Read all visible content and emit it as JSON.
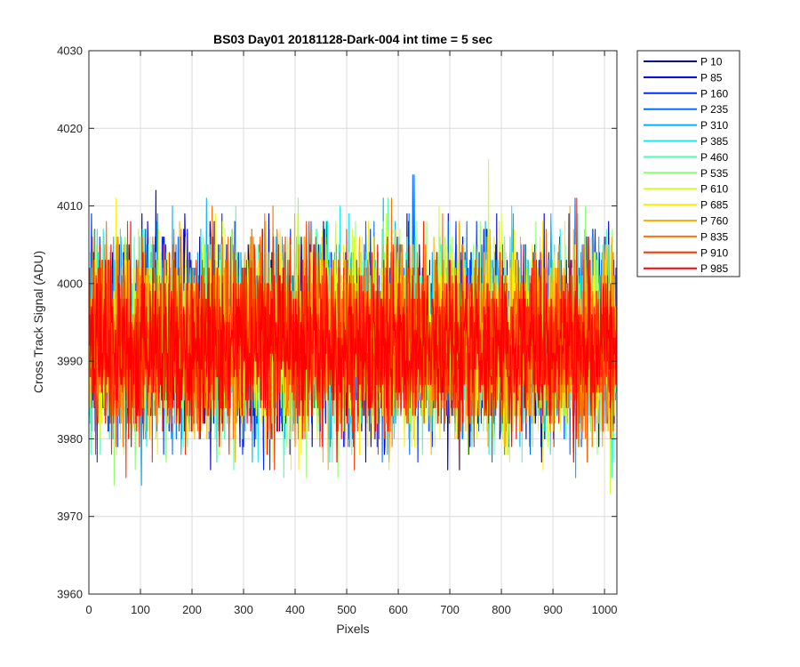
{
  "chart_data": {
    "type": "line",
    "title": "BS03 Day01 20181128-Dark-004 int time = 5 sec",
    "xlabel": "Pixels",
    "ylabel": "Cross Track Signal (ADU)",
    "xlim": [
      0,
      1024
    ],
    "ylim": [
      3960,
      4030
    ],
    "xticks": [
      0,
      100,
      200,
      300,
      400,
      500,
      600,
      700,
      800,
      900,
      1000
    ],
    "yticks": [
      3960,
      3970,
      3980,
      3990,
      4000,
      4010,
      4020,
      4030
    ],
    "xtick_labels": [
      "0",
      "100",
      "200",
      "300",
      "400",
      "500",
      "600",
      "700",
      "800",
      "900",
      "1000"
    ],
    "ytick_labels": [
      "3960",
      "3970",
      "3980",
      "3990",
      "4000",
      "4010",
      "4020",
      "4030"
    ],
    "grid": true,
    "legend_position": "outside-top-right",
    "n_points": 1024,
    "series": [
      {
        "name": "P 10",
        "color": "#00008F",
        "mean": 3993.0,
        "spread": 6.0,
        "seed": 11
      },
      {
        "name": "P 85",
        "color": "#0000CF",
        "mean": 3993.0,
        "spread": 6.0,
        "seed": 23
      },
      {
        "name": "P 160",
        "color": "#0030FF",
        "mean": 3993.0,
        "spread": 6.0,
        "seed": 37
      },
      {
        "name": "P 235",
        "color": "#0070FF",
        "mean": 3993.0,
        "spread": 6.0,
        "seed": 41
      },
      {
        "name": "P 310",
        "color": "#00B0FF",
        "mean": 3993.0,
        "spread": 6.0,
        "seed": 53
      },
      {
        "name": "P 385",
        "color": "#10F0EF",
        "mean": 3993.0,
        "spread": 6.0,
        "seed": 67
      },
      {
        "name": "P 460",
        "color": "#50FFAF",
        "mean": 3993.0,
        "spread": 6.0,
        "seed": 71
      },
      {
        "name": "P 535",
        "color": "#90FF6F",
        "mean": 3993.0,
        "spread": 6.0,
        "seed": 83
      },
      {
        "name": "P 610",
        "color": "#CFFF30",
        "mean": 3993.0,
        "spread": 6.0,
        "seed": 97
      },
      {
        "name": "P 685",
        "color": "#FFEF00",
        "mean": 3993.0,
        "spread": 6.0,
        "seed": 101
      },
      {
        "name": "P 760",
        "color": "#FFB000",
        "mean": 3993.0,
        "spread": 6.0,
        "seed": 113
      },
      {
        "name": "P 835",
        "color": "#FF7000",
        "mean": 3993.0,
        "spread": 6.0,
        "seed": 127
      },
      {
        "name": "P 910",
        "color": "#FF3000",
        "mean": 3992.5,
        "spread": 6.0,
        "seed": 131
      },
      {
        "name": "P 985",
        "color": "#FF0000",
        "mean": 3992.0,
        "spread": 5.0,
        "seed": 139
      }
    ]
  }
}
